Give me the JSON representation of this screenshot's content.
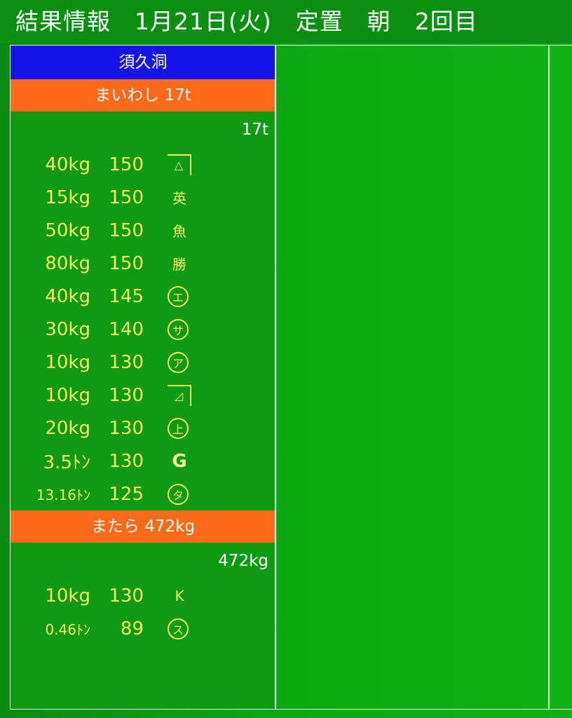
{
  "header": {
    "title": "結果情報　1月21日(火)　定置　朝　2回目"
  },
  "market": "須久洞",
  "colors": {
    "market_bg": "#1414e6",
    "fish_bg": "#ff6a1a",
    "screen_bg": "#0aa812",
    "value_text": "#f4f060"
  },
  "groups": [
    {
      "fish": "まいわし 17t",
      "total": "17t",
      "rows": [
        {
          "weight": "40kg",
          "price": "150",
          "mark": "△",
          "mark_style": "box"
        },
        {
          "weight": "15kg",
          "price": "150",
          "mark": "英",
          "mark_style": "yama"
        },
        {
          "weight": "50kg",
          "price": "150",
          "mark": "魚",
          "mark_style": "plain"
        },
        {
          "weight": "80kg",
          "price": "150",
          "mark": "勝",
          "mark_style": "yama"
        },
        {
          "weight": "40kg",
          "price": "145",
          "mark": "エ",
          "mark_style": "circle"
        },
        {
          "weight": "30kg",
          "price": "140",
          "mark": "サ",
          "mark_style": "circle"
        },
        {
          "weight": "10kg",
          "price": "130",
          "mark": "ア",
          "mark_style": "circle"
        },
        {
          "weight": "10kg",
          "price": "130",
          "mark": "◿",
          "mark_style": "box"
        },
        {
          "weight": "20kg",
          "price": "130",
          "mark": "上",
          "mark_style": "circle"
        },
        {
          "weight": "3.5ﾄﾝ",
          "price": "130",
          "mark": "G",
          "mark_style": "bold"
        },
        {
          "weight": "13.16ﾄﾝ",
          "price": "125",
          "mark": "タ",
          "mark_style": "circle"
        }
      ]
    },
    {
      "fish": "またら 472kg",
      "total": "472kg",
      "rows": [
        {
          "weight": "10kg",
          "price": "130",
          "mark": "K",
          "mark_style": "yama"
        },
        {
          "weight": "0.46ﾄﾝ",
          "price": "89",
          "mark": "ス",
          "mark_style": "circle"
        }
      ]
    }
  ]
}
